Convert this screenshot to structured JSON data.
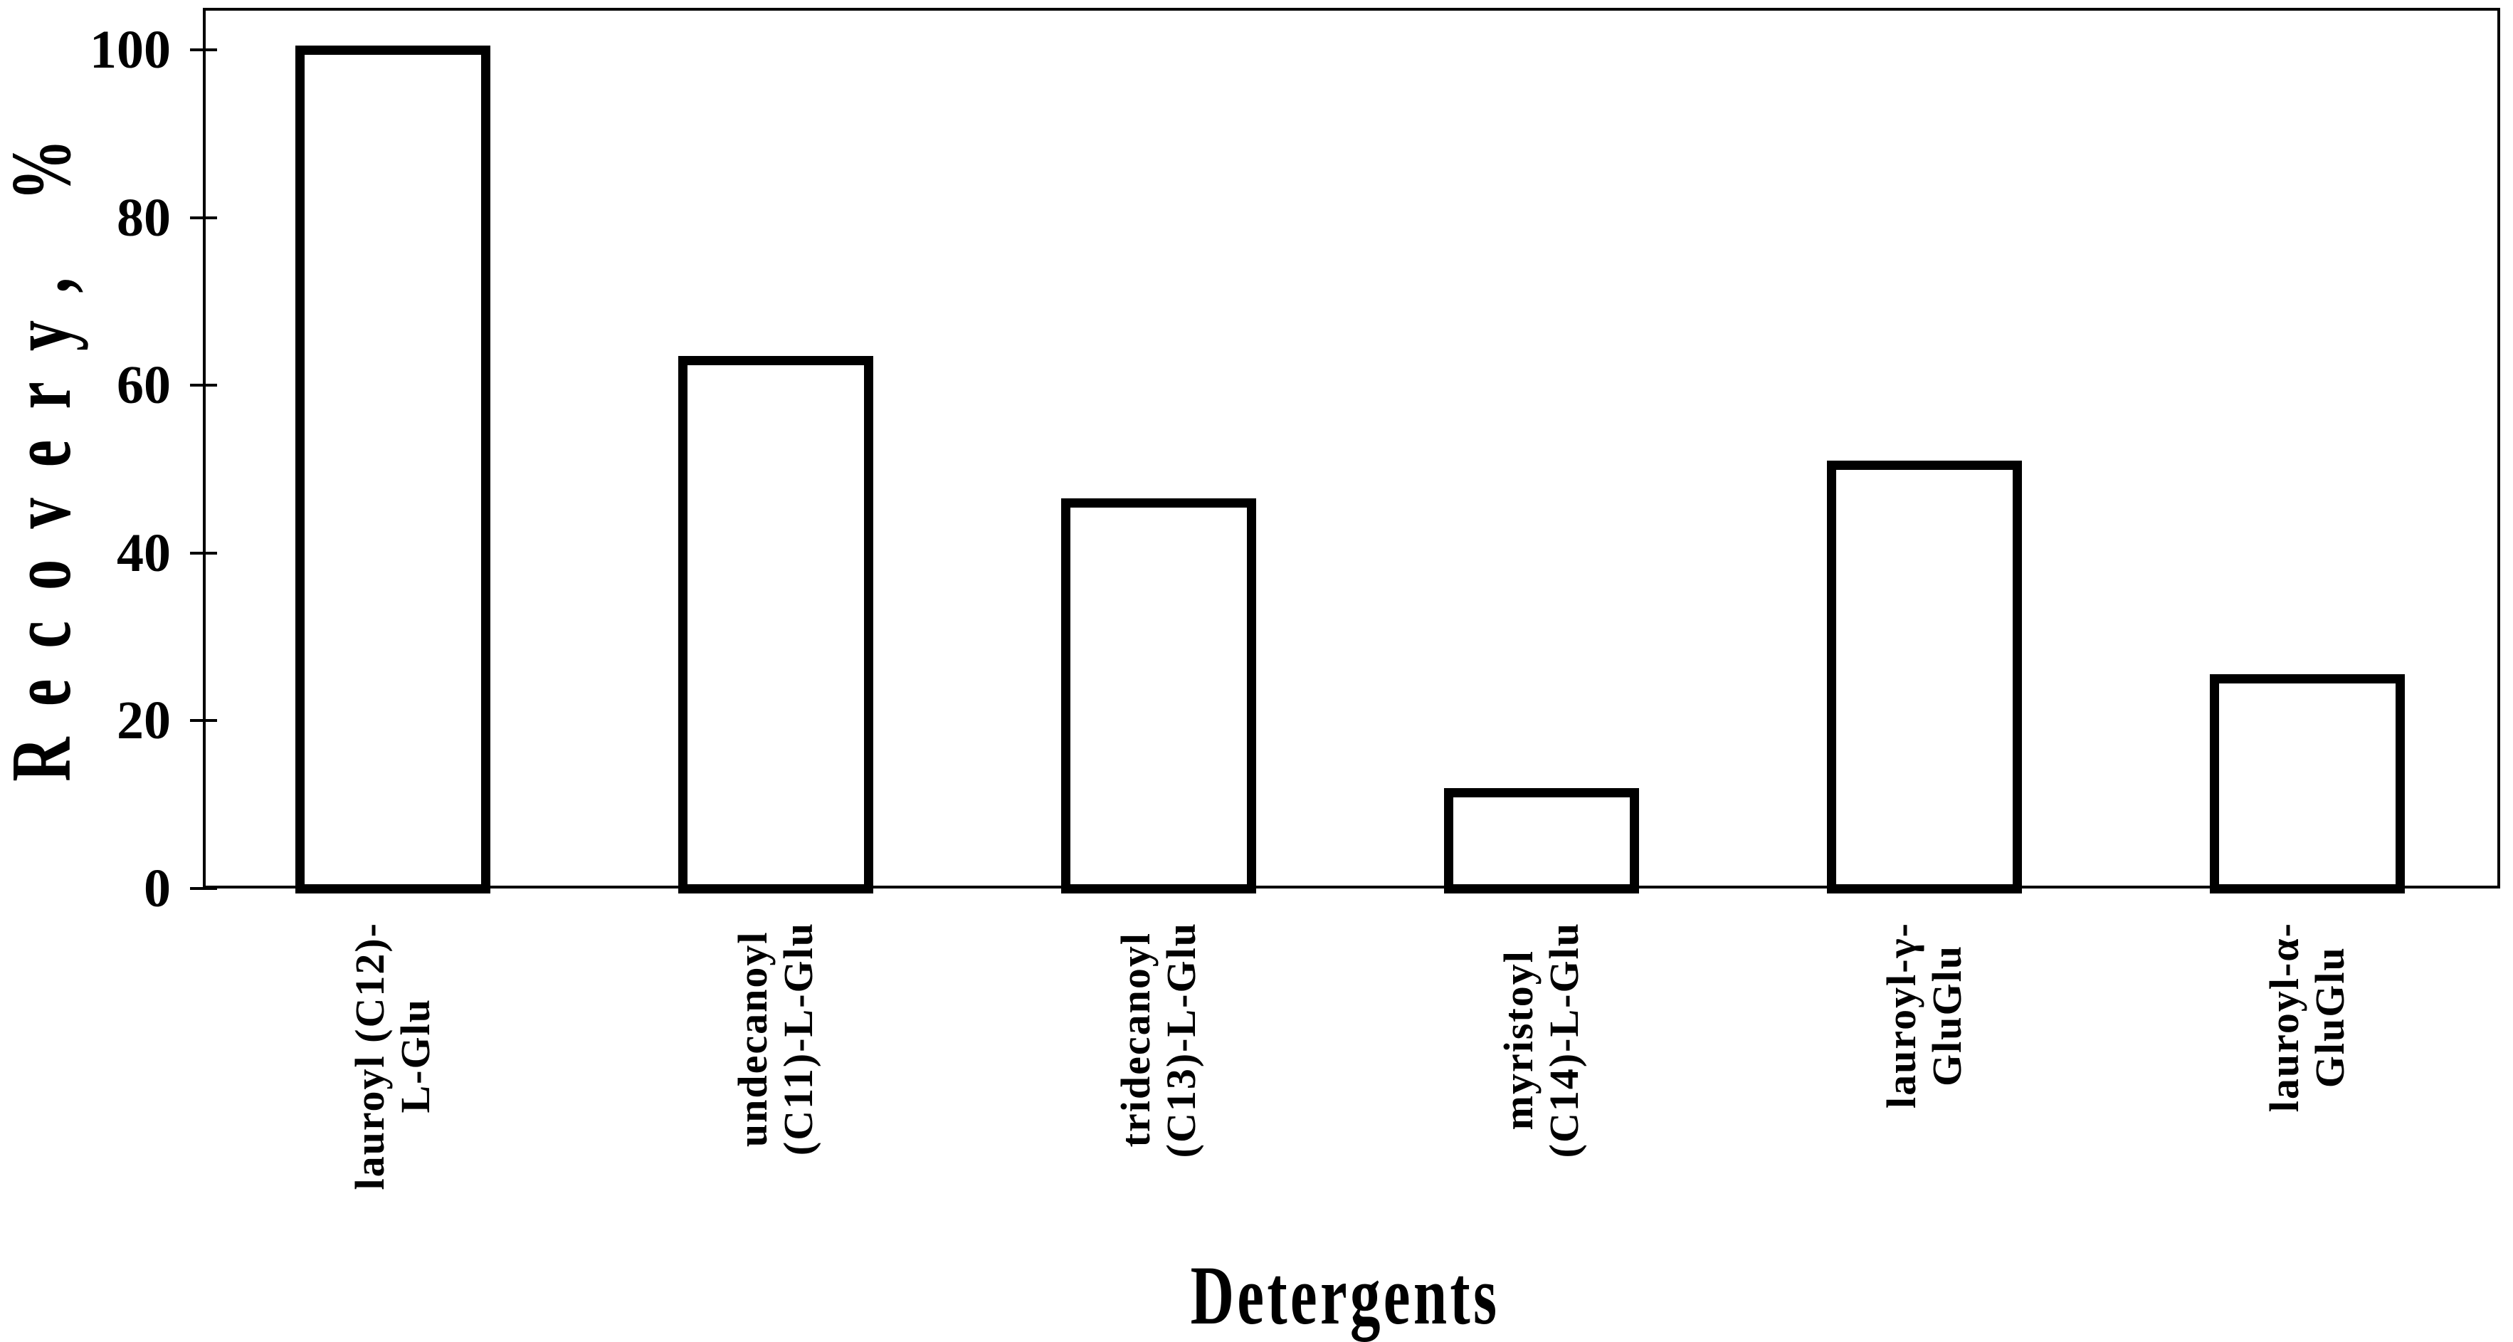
{
  "chart_data": {
    "type": "bar",
    "title": "",
    "xlabel": "Detergents",
    "ylabel": "Recovery, %",
    "categories": [
      [
        "lauroyl (C12)-",
        "L-Glu"
      ],
      [
        "undecanoyl",
        "(C11)-L-Glu"
      ],
      [
        "tridecanoyl",
        "(C13)-L-Glu"
      ],
      [
        "myristoyl",
        "(C14)-L-Glu"
      ],
      [
        "lauroyl-γ-",
        "GluGlu"
      ],
      [
        "lauroyl-α-",
        "GluGlu"
      ]
    ],
    "values": [
      100,
      63,
      46,
      11.5,
      50.5,
      25
    ],
    "yticks": [
      0,
      20,
      40,
      60,
      80,
      100
    ],
    "ytick_labels": [
      "0",
      "20",
      "40",
      "60",
      "80",
      "100"
    ],
    "ylim": [
      0,
      105
    ],
    "grid": false,
    "legend": false,
    "colors": {
      "bar_fill": "#ffffff",
      "bar_border": "#000000",
      "axis": "#000000",
      "text": "#000000",
      "background": "#ffffff"
    }
  }
}
